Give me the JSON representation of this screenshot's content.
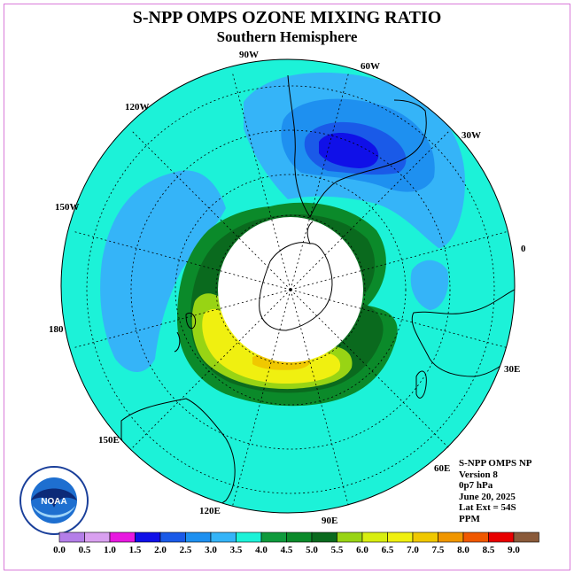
{
  "title": "S-NPP OMPS OZONE MIXING RATIO",
  "subtitle": "Southern Hemisphere",
  "longitude_labels": [
    "90W",
    "60W",
    "30W",
    "0",
    "30E",
    "60E",
    "90E",
    "120E",
    "150E",
    "180",
    "150W",
    "120W"
  ],
  "info": {
    "instrument": "S-NPP OMPS NP",
    "version": "Version 8",
    "level": "0p7 hPa",
    "date": "June 20, 2025",
    "lat_ext": "Lat Ext = 54S",
    "units": "PPM"
  },
  "logo": {
    "text": "NOAA"
  },
  "colorbar": {
    "ticks": [
      "0.0",
      "0.5",
      "1.0",
      "1.5",
      "2.0",
      "2.5",
      "3.0",
      "3.5",
      "4.0",
      "4.5",
      "5.0",
      "5.5",
      "6.0",
      "6.5",
      "7.0",
      "7.5",
      "8.0",
      "8.5",
      "9.0"
    ],
    "colors": [
      "#b47ee8",
      "#d9a0f0",
      "#e818e0",
      "#1010e8",
      "#1a5ae8",
      "#1e90f0",
      "#35b4f8",
      "#1cf2d8",
      "#0f9a3c",
      "#0b8a2a",
      "#0a6a1e",
      "#98d414",
      "#d8ee10",
      "#f0f010",
      "#f0c800",
      "#f09600",
      "#f05800",
      "#e80000",
      "#8a5a3a"
    ]
  },
  "colors": {
    "frame_border": "#d97ad9",
    "background_field": "#1cf2d8",
    "polar_night": "#ffffff"
  }
}
